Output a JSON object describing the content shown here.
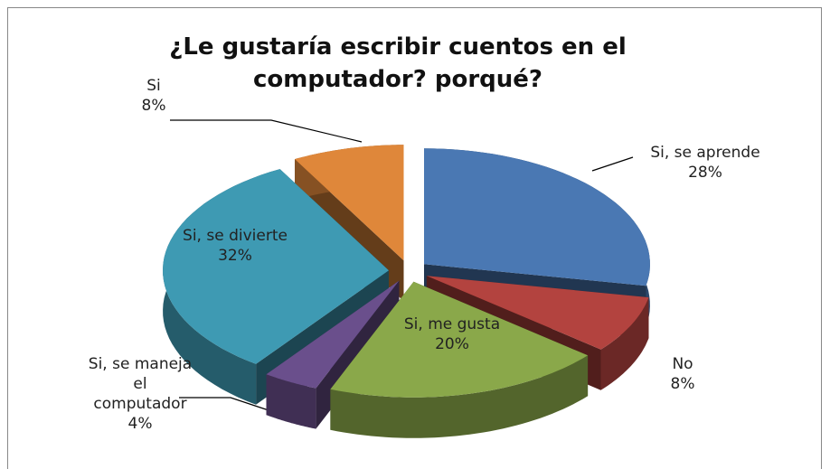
{
  "chart_data": {
    "type": "pie3d",
    "title": "¿Le gustaría escribir cuentos en el computador? porqué?",
    "categories": [
      "Si, se aprende",
      "No",
      "Si, me gusta",
      "Si, se maneja el computador",
      "Si, se divierte",
      "Si"
    ],
    "values": [
      28,
      8,
      20,
      4,
      32,
      8
    ],
    "value_labels": [
      "28%",
      "8%",
      "20%",
      "4%",
      "32%",
      "8%"
    ],
    "colors": [
      "#4a78b3",
      "#b3433f",
      "#8aa84a",
      "#6a4f8c",
      "#3e9ab3",
      "#df873a"
    ]
  }
}
